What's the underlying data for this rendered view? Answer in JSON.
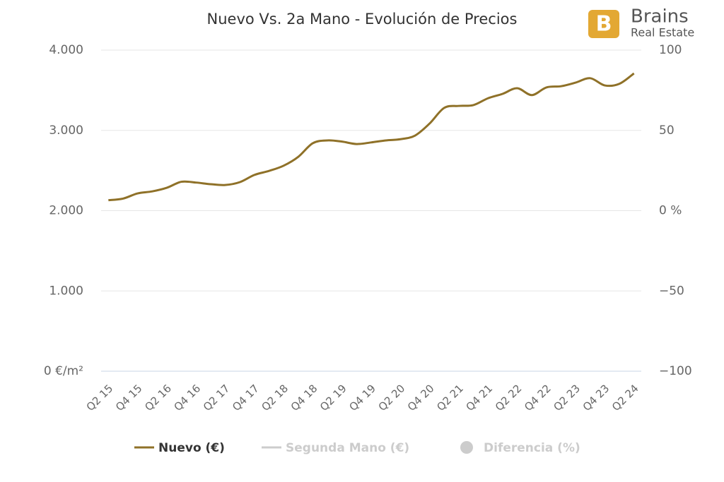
{
  "chart_data": {
    "type": "line",
    "title": "Nuevo Vs. 2a Mano - Evolución de Precios",
    "logo": {
      "name": "Brains",
      "tagline": "Real Estate"
    },
    "categories": [
      "Q2 15",
      null,
      "Q4 15",
      null,
      "Q2 16",
      null,
      "Q4 16",
      null,
      "Q2 17",
      null,
      "Q4 17",
      null,
      "Q2 18",
      null,
      "Q4 18",
      null,
      "Q2 19",
      null,
      "Q4 19",
      null,
      "Q2 20",
      null,
      "Q4 20",
      null,
      "Q2 21",
      null,
      "Q4 21",
      null,
      "Q2 22",
      null,
      "Q4 22",
      null,
      "Q2 23",
      null,
      "Q4 23",
      null,
      "Q2 24"
    ],
    "series": [
      {
        "name": "Nuevo (€)",
        "color": "#8f7128",
        "values": [
          2130,
          2150,
          2215,
          2240,
          2285,
          2360,
          2350,
          2330,
          2320,
          2355,
          2445,
          2495,
          2560,
          2670,
          2840,
          2875,
          2860,
          2830,
          2850,
          2875,
          2890,
          2935,
          3085,
          3280,
          3305,
          3315,
          3400,
          3455,
          3525,
          3440,
          3535,
          3550,
          3595,
          3650,
          3560,
          3580,
          3710
        ]
      }
    ],
    "hidden_series": [
      {
        "name": "Segunda Mano (€)",
        "color": "#cccccc"
      },
      {
        "name": "Diferencia (%)",
        "color": "#cccccc",
        "axis": "y2"
      }
    ],
    "ylim": [
      0,
      4000
    ],
    "yticks": [
      {
        "value": 0,
        "label": "0 €/m²"
      },
      {
        "value": 1000,
        "label": "1.000"
      },
      {
        "value": 2000,
        "label": "2.000"
      },
      {
        "value": 3000,
        "label": "3.000"
      },
      {
        "value": 4000,
        "label": "4.000"
      }
    ],
    "y2lim": [
      -100,
      100
    ],
    "y2ticks": [
      {
        "value": -100,
        "label": "−100"
      },
      {
        "value": -50,
        "label": "−50"
      },
      {
        "value": 0,
        "label": "0 %"
      },
      50,
      100
    ],
    "grid": true
  }
}
